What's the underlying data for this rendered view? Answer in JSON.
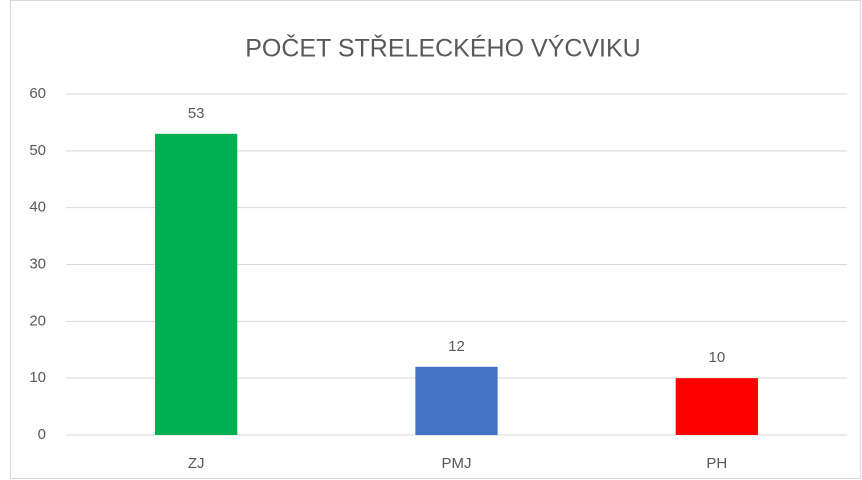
{
  "chart_data": {
    "type": "bar",
    "title": "POČET STŘELECKÉHO VÝCVIKU",
    "categories": [
      "ZJ",
      "PMJ",
      "PH"
    ],
    "values": [
      53,
      12,
      10
    ],
    "colors": [
      "#00b050",
      "#4472c4",
      "#ff0000"
    ],
    "ylim": [
      0,
      60
    ],
    "yticks": [
      0,
      10,
      20,
      30,
      40,
      50,
      60
    ],
    "grid": true
  }
}
